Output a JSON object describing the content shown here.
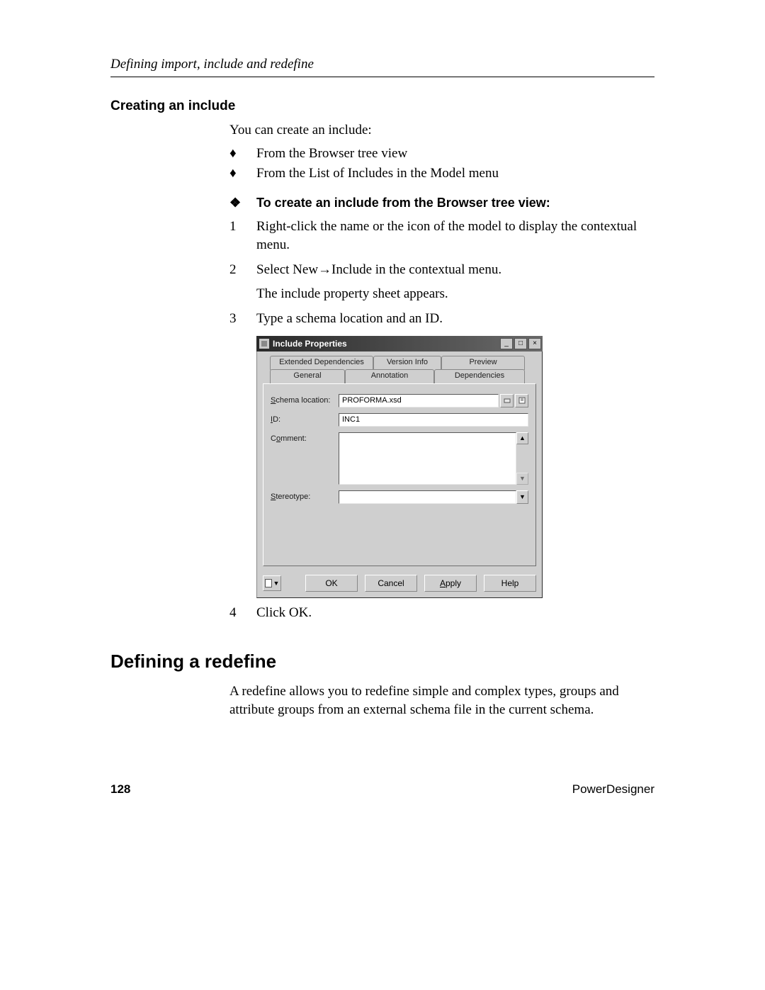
{
  "header": {
    "running": "Defining import, include and redefine"
  },
  "sec1": {
    "title": "Creating an include",
    "intro": "You can create an include:",
    "bullets": [
      "From the Browser tree view",
      "From the List of Includes in the Model menu"
    ],
    "procTitle": "To create an include from the Browser tree view:",
    "steps": {
      "s1": "Right-click the name or the icon of the model to display the contextual menu.",
      "s2": "Select New→Include in the contextual menu.",
      "s2b": "The include property sheet appears.",
      "s3": "Type a schema location and an ID.",
      "s4": "Click OK."
    }
  },
  "dialog": {
    "title": "Include Properties",
    "tabs": {
      "extDep": "Extended Dependencies",
      "version": "Version Info",
      "preview": "Preview",
      "general": "General",
      "annotation": "Annotation",
      "deps": "Dependencies"
    },
    "labels": {
      "schema_html": "<u>S</u>chema location:",
      "id_html": "<u>I</u>D:",
      "comment_html": "C<u>o</u>mment:",
      "stereo_html": "<u>S</u>tereotype:"
    },
    "values": {
      "schema": "PROFORMA.xsd",
      "id": "INC1",
      "comment": "",
      "stereo": ""
    },
    "buttons": {
      "ok": "OK",
      "cancel": "Cancel",
      "apply_html": "<u>A</u>pply",
      "help": "Help"
    },
    "colors": {
      "face": "#cfcfcf",
      "titlebar_start": "#2a2a2a",
      "titlebar_end": "#6a6a6a"
    }
  },
  "sec2": {
    "title": "Defining a redefine",
    "para": "A redefine allows you to redefine simple and complex types, groups and attribute groups from an external schema file in the current schema."
  },
  "footer": {
    "page": "128",
    "product": "PowerDesigner"
  },
  "glyphs": {
    "diamond": "♦",
    "fleur": "❖",
    "tri_dn": "▼",
    "tri_up": "▲"
  }
}
